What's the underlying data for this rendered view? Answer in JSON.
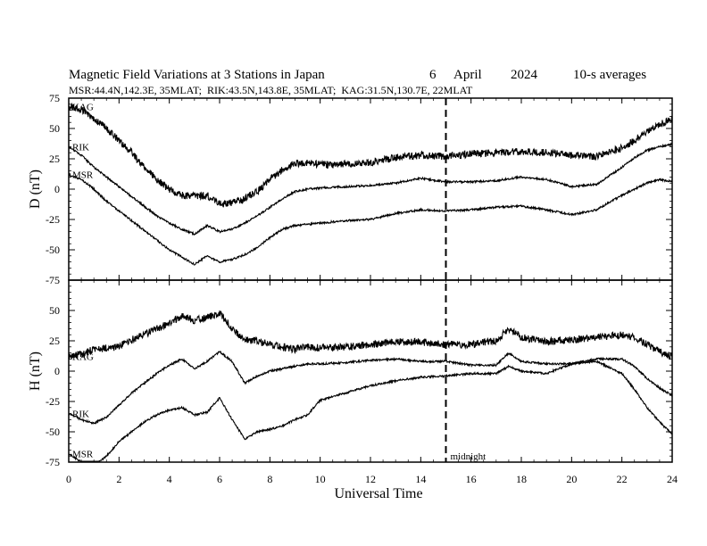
{
  "chart_data": {
    "type": "line",
    "title": "Magnetic Field Variations at 3 Stations in Japan",
    "date": {
      "day": "6",
      "month": "April",
      "year": "2024"
    },
    "averaging": "10-s averages",
    "stations_line": "MSR:44.4N,142.3E, 35MLAT;  RIK:43.5N,143.8E, 35MLAT;  KAG:31.5N,130.7E, 22MLAT",
    "xlabel": "Universal Time",
    "xlim": [
      0,
      24
    ],
    "xticks": [
      "0",
      "2",
      "4",
      "6",
      "8",
      "10",
      "12",
      "14",
      "16",
      "18",
      "20",
      "22",
      "24"
    ],
    "midnight_marker": {
      "x": 15,
      "label": "midnight"
    },
    "panels": [
      {
        "ylabel": "D (nT)",
        "ylim": [
          -75,
          75
        ],
        "yticks": [
          "75",
          "50",
          "25",
          "0",
          "-25",
          "-50",
          "-75"
        ],
        "series": [
          {
            "name": "KAG",
            "x": [
              0,
              0.5,
              1,
              1.5,
              2,
              2.5,
              3,
              3.5,
              4,
              4.5,
              5,
              5.5,
              6,
              6.5,
              7,
              7.5,
              8,
              8.5,
              9,
              9.5,
              10,
              11,
              12,
              13,
              14,
              15,
              16,
              17,
              18,
              19,
              20,
              21,
              22,
              22.5,
              23,
              23.5,
              24
            ],
            "values": [
              68,
              66,
              58,
              50,
              40,
              30,
              18,
              8,
              0,
              -5,
              -6,
              -5,
              -12,
              -11,
              -8,
              -2,
              8,
              16,
              21,
              22,
              20,
              21,
              22,
              26,
              28,
              27,
              29,
              30,
              31,
              30,
              28,
              27,
              34,
              40,
              48,
              53,
              58
            ]
          },
          {
            "name": "RIK",
            "x": [
              0,
              0.5,
              1,
              1.5,
              2,
              2.5,
              3,
              3.5,
              4,
              4.5,
              5,
              5.5,
              6,
              6.5,
              7,
              7.5,
              8,
              8.5,
              9,
              9.5,
              10,
              11,
              12,
              13,
              14,
              15,
              16,
              17,
              18,
              19,
              20,
              21,
              22,
              22.5,
              23,
              23.5,
              24
            ],
            "values": [
              35,
              28,
              18,
              10,
              2,
              -6,
              -14,
              -22,
              -28,
              -33,
              -37,
              -30,
              -35,
              -33,
              -28,
              -22,
              -15,
              -8,
              -2,
              0,
              1,
              2,
              3,
              5,
              9,
              6,
              6,
              7,
              10,
              8,
              2,
              4,
              18,
              26,
              32,
              35,
              37
            ]
          },
          {
            "name": "MSR",
            "x": [
              0,
              0.5,
              1,
              1.5,
              2,
              2.5,
              3,
              3.5,
              4,
              4.5,
              5,
              5.5,
              6,
              6.5,
              7,
              7.5,
              8,
              8.5,
              9,
              9.5,
              10,
              11,
              12,
              13,
              14,
              15,
              16,
              17,
              18,
              19,
              20,
              21,
              22,
              22.5,
              23,
              23.5,
              24
            ],
            "values": [
              12,
              8,
              0,
              -10,
              -18,
              -26,
              -34,
              -42,
              -50,
              -56,
              -62,
              -55,
              -60,
              -58,
              -54,
              -48,
              -40,
              -33,
              -30,
              -29,
              -28,
              -26,
              -25,
              -20,
              -17,
              -18,
              -17,
              -15,
              -14,
              -17,
              -21,
              -17,
              -5,
              0,
              5,
              8,
              6
            ]
          }
        ]
      },
      {
        "ylabel": "H (nT)",
        "ylim": [
          -75,
          75
        ],
        "yticks": [
          "50",
          "25",
          "0",
          "-25",
          "-50",
          "-75"
        ],
        "series": [
          {
            "name": "KAG",
            "x": [
              0,
              0.5,
              1,
              1.5,
              2,
              2.5,
              3,
              3.5,
              4,
              4.5,
              5,
              5.5,
              6,
              6.5,
              7,
              7.5,
              8,
              8.5,
              9,
              9.5,
              10,
              11,
              12,
              13,
              14,
              15,
              16,
              17,
              17.5,
              18,
              19,
              20,
              21,
              22,
              22.5,
              23,
              23.5,
              24
            ],
            "values": [
              12,
              14,
              18,
              19,
              20,
              26,
              30,
              35,
              40,
              45,
              42,
              44,
              48,
              35,
              26,
              25,
              22,
              20,
              18,
              20,
              19,
              20,
              22,
              24,
              24,
              22,
              22,
              25,
              35,
              28,
              24,
              26,
              28,
              30,
              28,
              22,
              16,
              12
            ]
          },
          {
            "name": "RIK",
            "x": [
              0,
              0.5,
              1,
              1.5,
              2,
              2.5,
              3,
              3.5,
              4,
              4.5,
              5,
              5.5,
              6,
              6.5,
              7,
              7.5,
              8,
              8.5,
              9,
              9.5,
              10,
              11,
              12,
              13,
              14,
              15,
              16,
              17,
              17.5,
              18,
              19,
              20,
              21,
              22,
              22.5,
              23,
              23.5,
              24
            ],
            "values": [
              -35,
              -40,
              -43,
              -38,
              -28,
              -18,
              -10,
              -2,
              5,
              10,
              2,
              8,
              16,
              8,
              -10,
              -4,
              0,
              2,
              4,
              6,
              6,
              7,
              9,
              10,
              8,
              8,
              5,
              5,
              15,
              8,
              6,
              6,
              10,
              10,
              4,
              -6,
              -14,
              -20
            ]
          },
          {
            "name": "MSR",
            "x": [
              0,
              0.5,
              1,
              1.5,
              2,
              2.5,
              3,
              3.5,
              4,
              4.5,
              5,
              5.5,
              6,
              6.5,
              7,
              7.5,
              8,
              8.5,
              9,
              9.5,
              10,
              11,
              12,
              13,
              14,
              15,
              16,
              17,
              17.5,
              18,
              19,
              20,
              21,
              22,
              22.5,
              23,
              23.5,
              24
            ],
            "values": [
              -68,
              -75,
              -78,
              -70,
              -58,
              -50,
              -42,
              -36,
              -32,
              -30,
              -36,
              -34,
              -22,
              -40,
              -56,
              -50,
              -48,
              -45,
              -40,
              -36,
              -24,
              -18,
              -12,
              -8,
              -5,
              -4,
              -2,
              -2,
              4,
              0,
              -2,
              6,
              8,
              -2,
              -15,
              -30,
              -42,
              -52
            ]
          }
        ]
      }
    ]
  }
}
